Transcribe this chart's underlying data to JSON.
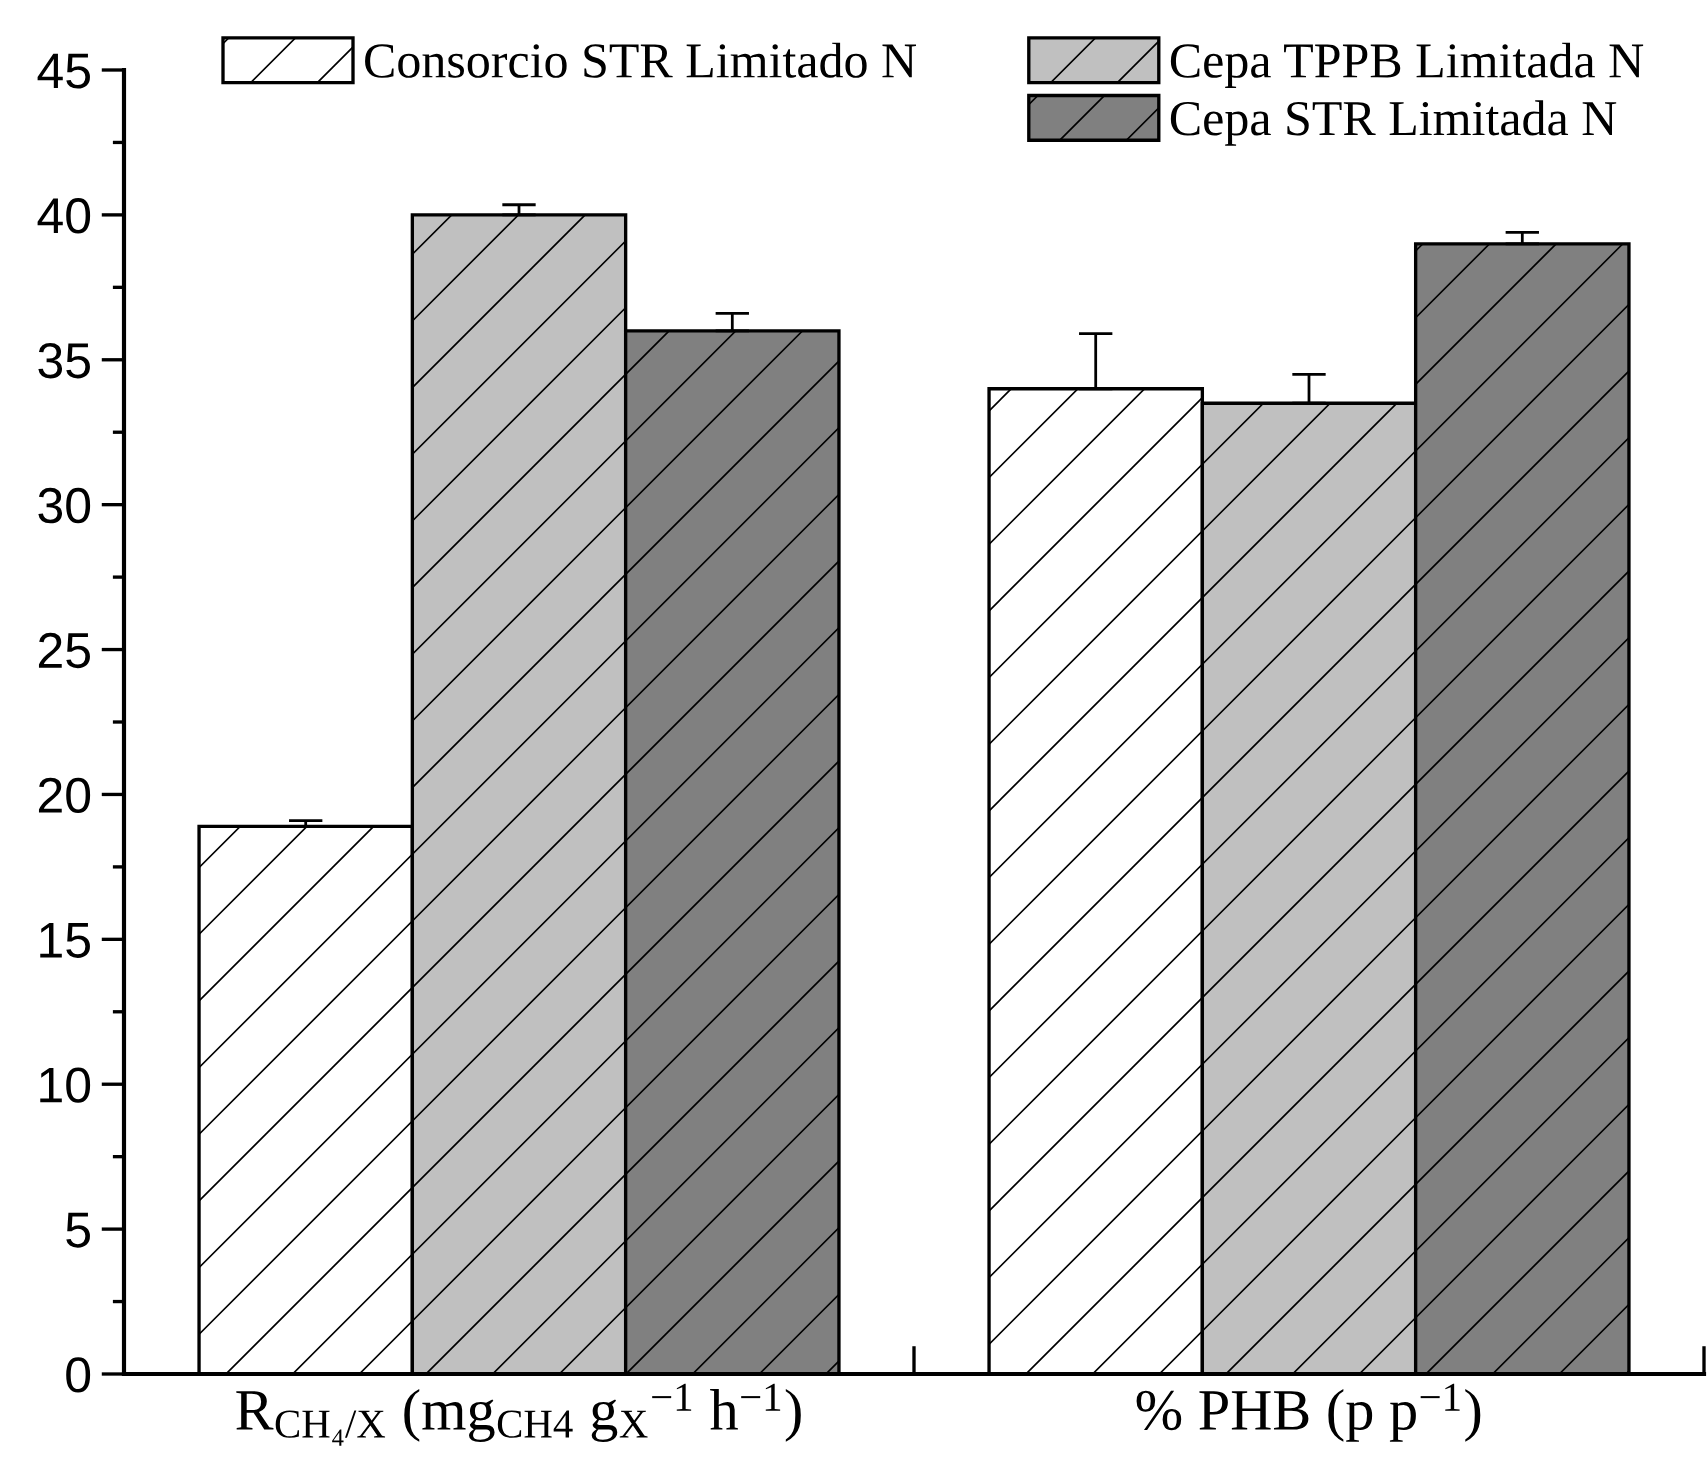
{
  "chart_data": {
    "type": "bar",
    "categories": [
      "R$_{CH₄/X}$ (mg$_{CH4}$ g$_{X}$$^{−1}$ h$^{−1}$)",
      "% PHB (p p$^{−1}$)"
    ],
    "series": [
      {
        "name": "Consorcio STR Limitado N",
        "color": "#ffffff",
        "values": [
          18.9,
          34.0
        ],
        "errors": [
          [
            18.9,
            19.1
          ],
          [
            34.0,
            35.9
          ]
        ]
      },
      {
        "name": "Cepa TPPB Limitada N",
        "color": "#c0c0c0",
        "values": [
          40.0,
          33.5
        ],
        "errors": [
          [
            40.0,
            40.35
          ],
          [
            33.5,
            34.5
          ]
        ]
      },
      {
        "name": "Cepa STR Limitada N",
        "color": "#808080",
        "values": [
          36.0,
          39.0
        ],
        "errors": [
          [
            36.0,
            36.6
          ],
          [
            39.0,
            39.4
          ]
        ]
      }
    ],
    "ylim": [
      0,
      45
    ],
    "yticks": [
      0,
      5,
      10,
      15,
      20,
      25,
      30,
      35,
      40,
      45
    ],
    "grid": false,
    "legend": "top"
  }
}
